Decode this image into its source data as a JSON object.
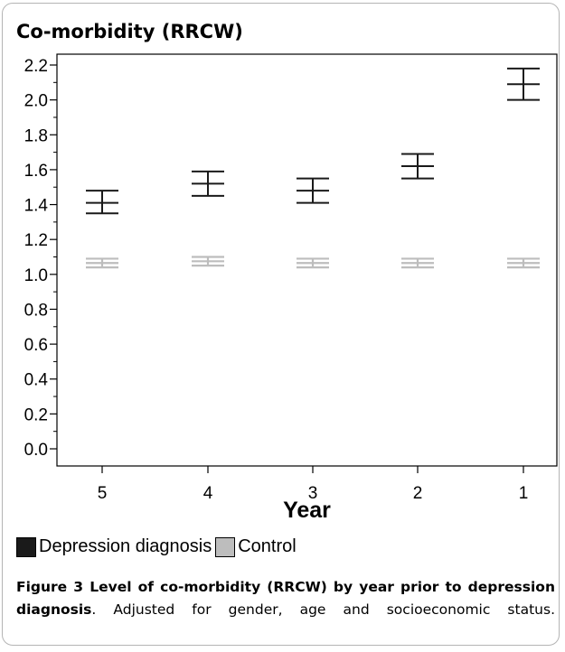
{
  "colors": {
    "depression": "#1a1a1a",
    "control": "#bdbdbd",
    "frame": "#b4b4b4"
  },
  "chart_data": {
    "type": "errorbar",
    "title": "Co-morbidity (RRCW)",
    "xlabel": "Year",
    "ylabel": "",
    "categories": [
      "5",
      "4",
      "3",
      "2",
      "1"
    ],
    "ylim": [
      0.0,
      2.2
    ],
    "yticks": [
      "0.0",
      "0.2",
      "0.4",
      "0.6",
      "0.8",
      "1.0",
      "1.2",
      "1.4",
      "1.6",
      "1.8",
      "2.0",
      "2.2"
    ],
    "grid": false,
    "legend_position": "bottom-left",
    "series": [
      {
        "name": "Depression diagnosis",
        "color": "#1a1a1a",
        "mean": [
          1.41,
          1.52,
          1.48,
          1.62,
          2.09
        ],
        "lower": [
          1.35,
          1.45,
          1.41,
          1.55,
          2.0
        ],
        "upper": [
          1.48,
          1.59,
          1.55,
          1.69,
          2.18
        ]
      },
      {
        "name": "Control",
        "color": "#bdbdbd",
        "mean": [
          1.065,
          1.075,
          1.065,
          1.065,
          1.065
        ],
        "lower": [
          1.04,
          1.05,
          1.04,
          1.04,
          1.04
        ],
        "upper": [
          1.09,
          1.1,
          1.09,
          1.09,
          1.09
        ]
      }
    ]
  },
  "caption": {
    "label": "Figure 3",
    "bold_text": "Level of co-morbidity (RRCW) by year prior to depression diagnosis",
    "rest": ". Adjusted for gender, age and socioeconomic status."
  }
}
